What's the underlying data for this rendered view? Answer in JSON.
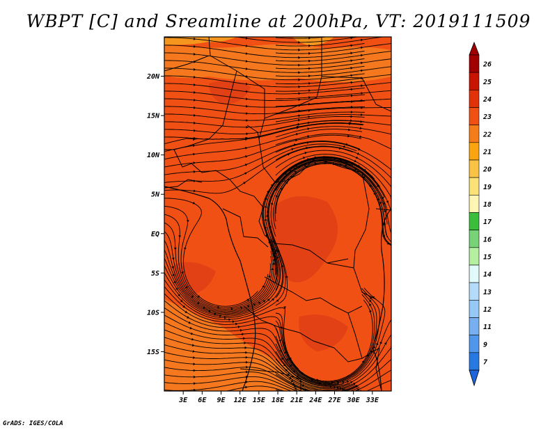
{
  "title": "WBPT [C] and Sreamline at 200hPa, VT: 2019111509",
  "credit": "GrADS: IGES/COLA",
  "map": {
    "lon_range": [
      0,
      36
    ],
    "lat_range": [
      -20,
      25
    ],
    "lat_ticks": [
      {
        "value": 20,
        "label": "20N"
      },
      {
        "value": 15,
        "label": "15N"
      },
      {
        "value": 10,
        "label": "10N"
      },
      {
        "value": 5,
        "label": "5N"
      },
      {
        "value": 0,
        "label": "EQ"
      },
      {
        "value": -5,
        "label": "5S"
      },
      {
        "value": -10,
        "label": "10S"
      },
      {
        "value": -15,
        "label": "15S"
      }
    ],
    "lon_ticks": [
      {
        "value": 3,
        "label": "3E"
      },
      {
        "value": 6,
        "label": "6E"
      },
      {
        "value": 9,
        "label": "9E"
      },
      {
        "value": 12,
        "label": "12E"
      },
      {
        "value": 15,
        "label": "15E"
      },
      {
        "value": 18,
        "label": "18E"
      },
      {
        "value": 21,
        "label": "21E"
      },
      {
        "value": 24,
        "label": "24E"
      },
      {
        "value": 27,
        "label": "27E"
      },
      {
        "value": 30,
        "label": "30E"
      },
      {
        "value": 33,
        "label": "33E"
      }
    ],
    "field_colors": {
      "base": "#f05014",
      "light": "#f5781e",
      "dark": "#dc3c14",
      "warm": "#f5961e"
    }
  },
  "colorbar": {
    "levels": [
      {
        "label": "26",
        "color": "#a00000"
      },
      {
        "label": "25",
        "color": "#c81400"
      },
      {
        "label": "24",
        "color": "#e1320a"
      },
      {
        "label": "23",
        "color": "#f05014"
      },
      {
        "label": "22",
        "color": "#f57d19"
      },
      {
        "label": "21",
        "color": "#faa50f"
      },
      {
        "label": "20",
        "color": "#fac346"
      },
      {
        "label": "19",
        "color": "#fae178"
      },
      {
        "label": "18",
        "color": "#fff5b4"
      },
      {
        "label": "17",
        "color": "#3cbe3c"
      },
      {
        "label": "16",
        "color": "#78d278"
      },
      {
        "label": "15",
        "color": "#b4f0a0"
      },
      {
        "label": "14",
        "color": "#e1fafa"
      },
      {
        "label": "13",
        "color": "#b4dcfa"
      },
      {
        "label": "12",
        "color": "#96c8f5"
      },
      {
        "label": "11",
        "color": "#78aff0"
      },
      {
        "label": "9",
        "color": "#5096eb"
      },
      {
        "label": "7",
        "color": "#2878e1"
      }
    ],
    "top_arrow_color": "#a00000",
    "bottom_arrow_color": "#1e64dc"
  }
}
